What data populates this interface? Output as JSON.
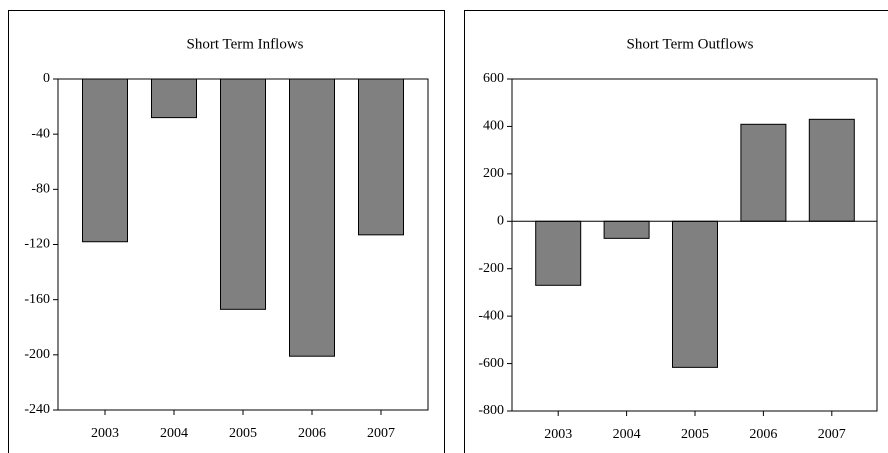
{
  "chart_data": [
    {
      "type": "bar",
      "title": "Short Term Inflows",
      "categories": [
        "2003",
        "2004",
        "2005",
        "2006",
        "2007"
      ],
      "values": [
        -118,
        -28,
        -167,
        -201,
        -113
      ],
      "color": "#808080",
      "ylim": [
        -240,
        0
      ],
      "yticks": [
        -240,
        -200,
        -160,
        -120,
        -80,
        -40,
        0
      ]
    },
    {
      "type": "bar",
      "title": "Short Term Outflows",
      "categories": [
        "2003",
        "2004",
        "2005",
        "2006",
        "2007"
      ],
      "values": [
        -270,
        -72,
        -616,
        409,
        430
      ],
      "color": "#808080",
      "ylim": [
        -800,
        600
      ],
      "yticks": [
        -800,
        -600,
        -400,
        -200,
        0,
        200,
        400,
        600
      ]
    }
  ]
}
